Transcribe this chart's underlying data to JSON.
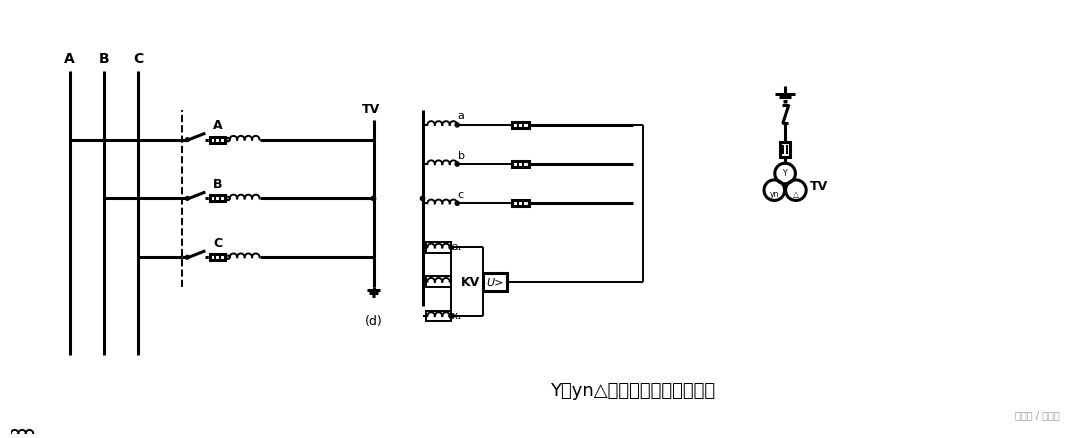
{
  "bg_color": "#ffffff",
  "line_color": "#000000",
  "title_text": "Y，yn△三相五柱式电压互感器",
  "label_d": "(d)",
  "watermark": "头条号 / 电力宝",
  "lw": 1.4,
  "lw_thick": 2.2
}
